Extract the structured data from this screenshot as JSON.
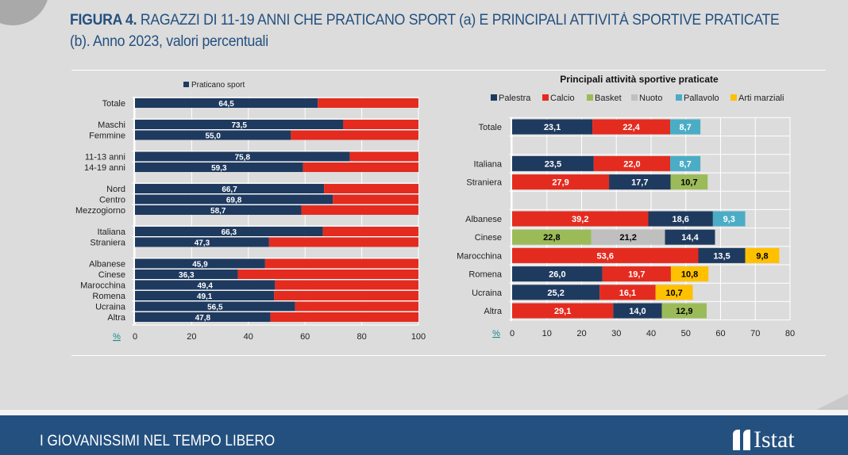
{
  "header": {
    "figure_label": "FIGURA 4.",
    "title_line1": " RAGAZZI DI 11-19 ANNI CHE PRATICANO SPORT (a) E PRINCIPALI ATTIVITÀ SPORTIVE PRATICATE",
    "title_line2": "(b). Anno 2023, valori percentuali"
  },
  "footer": {
    "section_title": "I GIOVANISSIMI NEL TEMPO LIBERO",
    "logo_text": "Istat"
  },
  "colors": {
    "navy": "#1f3a5f",
    "red": "#e42b1f",
    "brand": "#24507f"
  },
  "chart_data": [
    {
      "type": "bar",
      "orientation": "horizontal",
      "stacked": true,
      "title": "",
      "legend": [
        "Praticano sport"
      ],
      "legend_position": "top",
      "xlabel": "%",
      "xlim": [
        0,
        100
      ],
      "xticks": [
        "0",
        "20",
        "40",
        "60",
        "80",
        "100"
      ],
      "grid": true,
      "categories": [
        "Totale",
        "Maschi",
        "Femmine",
        "11-13 anni",
        "14-19 anni",
        "Nord",
        "Centro",
        "Mezzogiorno",
        "Italiana",
        "Straniera",
        "Albanese",
        "Cinese",
        "Marocchina",
        "Romena",
        "Ucraina",
        "Altra"
      ],
      "groups": [
        0,
        1,
        1,
        2,
        2,
        3,
        3,
        3,
        4,
        4,
        5,
        5,
        5,
        5,
        5,
        5
      ],
      "series": [
        {
          "name": "Praticano sport",
          "color": "#1f3a5f",
          "values": [
            64.5,
            73.5,
            55.0,
            75.8,
            59.3,
            66.7,
            69.8,
            58.7,
            66.3,
            47.3,
            45.9,
            36.3,
            49.4,
            49.1,
            56.5,
            47.8
          ],
          "labels": [
            "64,5",
            "73,5",
            "55,0",
            "75,8",
            "59,3",
            "66,7",
            "69,8",
            "58,7",
            "66,3",
            "47,3",
            "45,9",
            "36,3",
            "49,4",
            "49,1",
            "56,5",
            "47,8"
          ]
        },
        {
          "color": "#e42b1f",
          "values": [
            35.5,
            26.5,
            45.0,
            24.2,
            40.7,
            33.3,
            30.2,
            41.3,
            33.7,
            52.7,
            54.1,
            63.7,
            50.6,
            50.9,
            43.5,
            52.2
          ]
        }
      ]
    },
    {
      "type": "bar",
      "orientation": "horizontal",
      "stacked": true,
      "title": "Principali attività sportive praticate",
      "legend": [
        {
          "name": "Palestra",
          "color": "#1f3a5f",
          "text": "#ffffff"
        },
        {
          "name": "Calcio",
          "color": "#e42b1f",
          "text": "#ffffff"
        },
        {
          "name": "Basket",
          "color": "#9bbb59",
          "text": "#000000"
        },
        {
          "name": "Nuoto",
          "color": "#bfbfbf",
          "text": "#000000"
        },
        {
          "name": "Pallavolo",
          "color": "#4bacc6",
          "text": "#ffffff"
        },
        {
          "name": "Arti marziali",
          "color": "#ffc000",
          "text": "#000000"
        }
      ],
      "legend_position": "top",
      "xlabel": "%",
      "xlim": [
        0,
        80
      ],
      "xticks": [
        "0",
        "10",
        "20",
        "30",
        "40",
        "50",
        "60",
        "70",
        "80"
      ],
      "grid": true,
      "rows": [
        {
          "category": "Totale",
          "segments": [
            {
              "activity": "Palestra",
              "value": 23.1,
              "label": "23,1"
            },
            {
              "activity": "Calcio",
              "value": 22.4,
              "label": "22,4"
            },
            {
              "activity": "Pallavolo",
              "value": 8.7,
              "label": "8,7"
            }
          ]
        },
        {
          "category": "",
          "segments": []
        },
        {
          "category": "Italiana",
          "segments": [
            {
              "activity": "Palestra",
              "value": 23.5,
              "label": "23,5"
            },
            {
              "activity": "Calcio",
              "value": 22.0,
              "label": "22,0"
            },
            {
              "activity": "Pallavolo",
              "value": 8.7,
              "label": "8,7"
            }
          ]
        },
        {
          "category": "Straniera",
          "segments": [
            {
              "activity": "Calcio",
              "value": 27.9,
              "label": "27,9"
            },
            {
              "activity": "Palestra",
              "value": 17.7,
              "label": "17,7"
            },
            {
              "activity": "Basket",
              "value": 10.7,
              "label": "10,7"
            }
          ]
        },
        {
          "category": "",
          "segments": []
        },
        {
          "category": "Albanese",
          "segments": [
            {
              "activity": "Calcio",
              "value": 39.2,
              "label": "39,2"
            },
            {
              "activity": "Palestra",
              "value": 18.6,
              "label": "18,6"
            },
            {
              "activity": "Pallavolo",
              "value": 9.3,
              "label": "9,3"
            }
          ]
        },
        {
          "category": "Cinese",
          "segments": [
            {
              "activity": "Basket",
              "value": 22.8,
              "label": "22,8"
            },
            {
              "activity": "Nuoto",
              "value": 21.2,
              "label": "21,2"
            },
            {
              "activity": "Palestra",
              "value": 14.4,
              "label": "14,4"
            }
          ]
        },
        {
          "category": "Marocchina",
          "segments": [
            {
              "activity": "Calcio",
              "value": 53.6,
              "label": "53,6"
            },
            {
              "activity": "Palestra",
              "value": 13.5,
              "label": "13,5"
            },
            {
              "activity": "Arti marziali",
              "value": 9.8,
              "label": "9,8"
            }
          ]
        },
        {
          "category": "Romena",
          "segments": [
            {
              "activity": "Palestra",
              "value": 26.0,
              "label": "26,0"
            },
            {
              "activity": "Calcio",
              "value": 19.7,
              "label": "19,7"
            },
            {
              "activity": "Arti marziali",
              "value": 10.8,
              "label": "10,8"
            }
          ]
        },
        {
          "category": "Ucraina",
          "segments": [
            {
              "activity": "Palestra",
              "value": 25.2,
              "label": "25,2"
            },
            {
              "activity": "Calcio",
              "value": 16.1,
              "label": "16,1"
            },
            {
              "activity": "Arti marziali",
              "value": 10.7,
              "label": "10,7"
            }
          ]
        },
        {
          "category": "Altra",
          "segments": [
            {
              "activity": "Calcio",
              "value": 29.1,
              "label": "29,1"
            },
            {
              "activity": "Palestra",
              "value": 14.0,
              "label": "14,0"
            },
            {
              "activity": "Basket",
              "value": 12.9,
              "label": "12,9"
            }
          ]
        }
      ]
    }
  ]
}
